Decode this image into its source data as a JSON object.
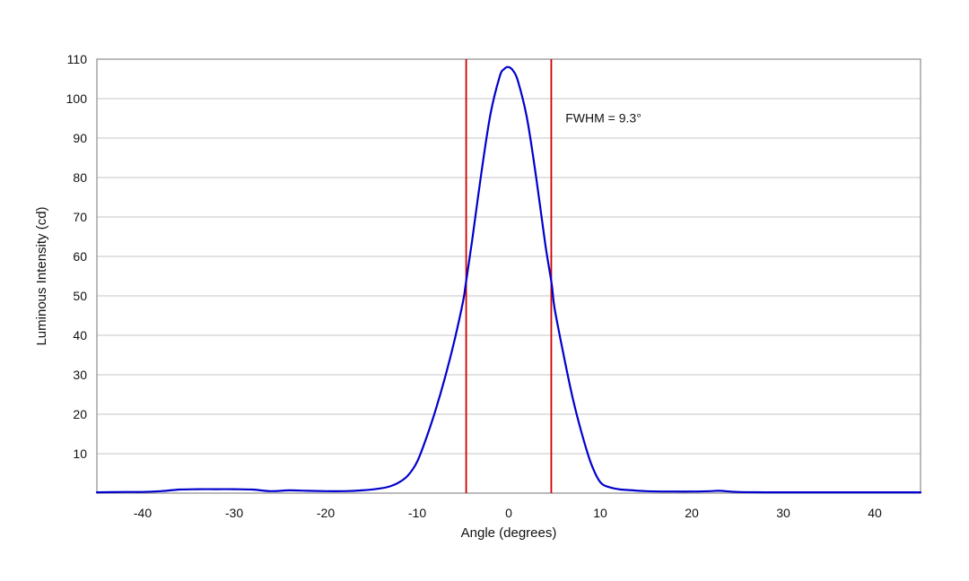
{
  "chart_data": {
    "type": "line",
    "title": "",
    "xlabel": "Angle (degrees)",
    "ylabel": "Luminous Intensity (cd)",
    "xlim": [
      -45,
      45
    ],
    "ylim": [
      0,
      110
    ],
    "x_ticks": [
      -40,
      -30,
      -20,
      -10,
      0,
      10,
      20,
      30,
      40
    ],
    "y_ticks": [
      10,
      20,
      30,
      40,
      50,
      60,
      70,
      80,
      90,
      100,
      110
    ],
    "grid": "horizontal",
    "legend": "none",
    "series": [
      {
        "color": "#0000cc",
        "x": [
          -45,
          -42,
          -40,
          -38,
          -36,
          -34,
          -32,
          -30,
          -28,
          -26,
          -24,
          -22,
          -20,
          -18,
          -16,
          -14,
          -13,
          -12,
          -11,
          -10,
          -9,
          -8,
          -7,
          -6,
          -5,
          -4.7,
          -4,
          -3,
          -2,
          -1,
          -0.5,
          0,
          0.5,
          1,
          2,
          3,
          4,
          4.7,
          5,
          6,
          7,
          8,
          9,
          10,
          11,
          12,
          13,
          15,
          18,
          20,
          22,
          23,
          25,
          28,
          30,
          32,
          35,
          38,
          40,
          42,
          45
        ],
        "y": [
          0.2,
          0.3,
          0.3,
          0.5,
          0.9,
          1.0,
          1.0,
          1.0,
          0.9,
          0.5,
          0.7,
          0.6,
          0.5,
          0.5,
          0.7,
          1.2,
          1.7,
          2.7,
          4.5,
          8.0,
          14.0,
          21.0,
          29.0,
          38.0,
          48.5,
          53.0,
          64.0,
          81.0,
          96.0,
          105.5,
          107.5,
          108.0,
          107.0,
          104.5,
          95.0,
          80.0,
          63.0,
          53.0,
          47.0,
          35.0,
          24.0,
          15.0,
          7.5,
          2.8,
          1.5,
          1.0,
          0.8,
          0.5,
          0.4,
          0.4,
          0.5,
          0.6,
          0.3,
          0.2,
          0.2,
          0.2,
          0.2,
          0.2,
          0.2,
          0.2,
          0.2
        ]
      }
    ],
    "vlines": [
      {
        "x": -4.65,
        "color": "#cc0000"
      },
      {
        "x": 4.65,
        "color": "#cc0000"
      }
    ],
    "annotations": [
      {
        "text": "FWHM = 9.3°",
        "x": 6.2,
        "y": 94
      }
    ]
  }
}
